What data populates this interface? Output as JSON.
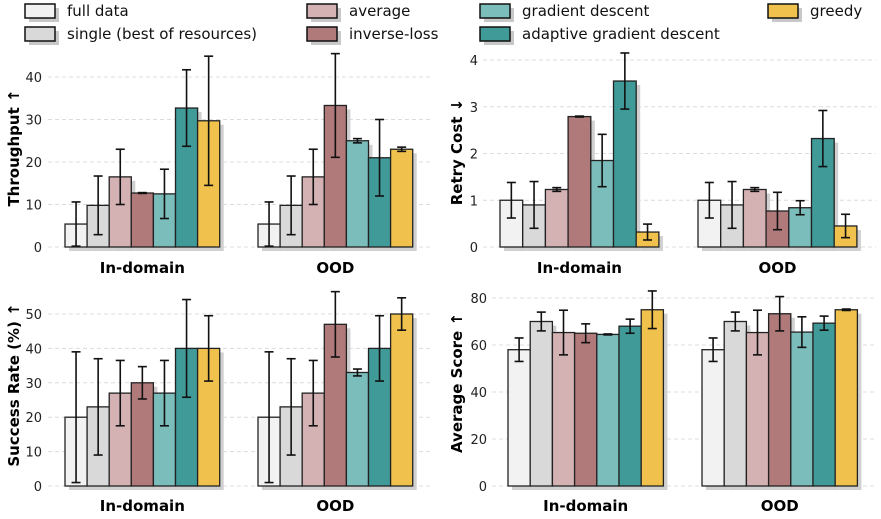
{
  "legend": {
    "placement": "top",
    "items": [
      {
        "label": "full data",
        "color": "#f2f2f2"
      },
      {
        "label": "single (best of resources)",
        "color": "#d9d9d9"
      },
      {
        "label": "average",
        "color": "#d4b2b4"
      },
      {
        "label": "inverse-loss",
        "color": "#b07a7a"
      },
      {
        "label": "gradient descent",
        "color": "#7bbdbb"
      },
      {
        "label": "adaptive gradient descent",
        "color": "#3f9a98"
      },
      {
        "label": "greedy",
        "color": "#f1c14d"
      }
    ]
  },
  "chart_data": [
    {
      "type": "bar",
      "ylabel": "Throughput ↑",
      "categories": [
        "In-domain",
        "OOD"
      ],
      "ylim": [
        0,
        46
      ],
      "yticks": [
        0,
        10,
        20,
        30,
        40
      ],
      "grid": true,
      "series": [
        {
          "name": "full data",
          "values": [
            5.4,
            5.4
          ],
          "errors": [
            5.2,
            5.2
          ]
        },
        {
          "name": "single (best of resources)",
          "values": [
            9.8,
            9.8
          ],
          "errors": [
            6.9,
            6.9
          ]
        },
        {
          "name": "average",
          "values": [
            16.5,
            16.5
          ],
          "errors": [
            6.5,
            6.5
          ]
        },
        {
          "name": "inverse-loss",
          "values": [
            12.7,
            33.3
          ],
          "errors": [
            0.1,
            12.2
          ]
        },
        {
          "name": "gradient descent",
          "values": [
            12.5,
            25.0
          ],
          "errors": [
            5.8,
            0.5
          ]
        },
        {
          "name": "adaptive gradient descent",
          "values": [
            32.7,
            21.0
          ],
          "errors": [
            9.0,
            9.0
          ]
        },
        {
          "name": "greedy",
          "values": [
            29.7,
            23.0
          ],
          "errors": [
            15.2,
            0.5
          ]
        }
      ]
    },
    {
      "type": "bar",
      "ylabel": "Retry Cost ↓",
      "categories": [
        "In-domain",
        "OOD"
      ],
      "ylim": [
        0,
        4.2
      ],
      "yticks": [
        0,
        1,
        2,
        3,
        4
      ],
      "grid": true,
      "series": [
        {
          "name": "full data",
          "values": [
            1.0,
            1.0
          ],
          "errors": [
            0.38,
            0.38
          ]
        },
        {
          "name": "single (best of resources)",
          "values": [
            0.9,
            0.9
          ],
          "errors": [
            0.5,
            0.5
          ]
        },
        {
          "name": "average",
          "values": [
            1.23,
            1.23
          ],
          "errors": [
            0.04,
            0.04
          ]
        },
        {
          "name": "inverse-loss",
          "values": [
            2.79,
            0.77
          ],
          "errors": [
            0.01,
            0.4
          ]
        },
        {
          "name": "gradient descent",
          "values": [
            1.85,
            0.84
          ],
          "errors": [
            0.56,
            0.15
          ]
        },
        {
          "name": "adaptive gradient descent",
          "values": [
            3.55,
            2.32
          ],
          "errors": [
            0.6,
            0.6
          ]
        },
        {
          "name": "greedy",
          "values": [
            0.32,
            0.45
          ],
          "errors": [
            0.17,
            0.25
          ]
        }
      ]
    },
    {
      "type": "bar",
      "ylabel": "Success Rate (%) ↑",
      "categories": [
        "In-domain",
        "OOD"
      ],
      "ylim": [
        0,
        57
      ],
      "yticks": [
        0,
        10,
        20,
        30,
        40,
        50
      ],
      "grid": true,
      "series": [
        {
          "name": "full data",
          "values": [
            20,
            20
          ],
          "errors": [
            19,
            19
          ]
        },
        {
          "name": "single (best of resources)",
          "values": [
            23,
            23
          ],
          "errors": [
            14,
            14
          ]
        },
        {
          "name": "average",
          "values": [
            27,
            27
          ],
          "errors": [
            9.5,
            9.5
          ]
        },
        {
          "name": "inverse-loss",
          "values": [
            30,
            47
          ],
          "errors": [
            4.7,
            9.5
          ]
        },
        {
          "name": "gradient descent",
          "values": [
            27,
            33
          ],
          "errors": [
            9.5,
            1.0
          ]
        },
        {
          "name": "adaptive gradient descent",
          "values": [
            40,
            40
          ],
          "errors": [
            14.2,
            9.5
          ]
        },
        {
          "name": "greedy",
          "values": [
            40,
            50
          ],
          "errors": [
            9.5,
            4.7
          ]
        }
      ]
    },
    {
      "type": "bar",
      "ylabel": "Average Score ↑",
      "categories": [
        "In-domain",
        "OOD"
      ],
      "ylim": [
        0,
        85
      ],
      "yticks": [
        0,
        20,
        40,
        60,
        80
      ],
      "grid": true,
      "series": [
        {
          "name": "full data",
          "values": [
            58,
            58
          ],
          "errors": [
            5,
            5
          ]
        },
        {
          "name": "single (best of resources)",
          "values": [
            70,
            70
          ],
          "errors": [
            4,
            4
          ]
        },
        {
          "name": "average",
          "values": [
            65.3,
            65.3
          ],
          "errors": [
            9.5,
            9.5
          ]
        },
        {
          "name": "inverse-loss",
          "values": [
            65,
            73.3
          ],
          "errors": [
            4,
            7.3
          ]
        },
        {
          "name": "gradient descent",
          "values": [
            64.5,
            65.5
          ],
          "errors": [
            0.2,
            6.5
          ]
        },
        {
          "name": "adaptive gradient descent",
          "values": [
            68,
            69.3
          ],
          "errors": [
            3,
            3
          ]
        },
        {
          "name": "greedy",
          "values": [
            75,
            75
          ],
          "errors": [
            8,
            0.3
          ]
        }
      ]
    }
  ]
}
